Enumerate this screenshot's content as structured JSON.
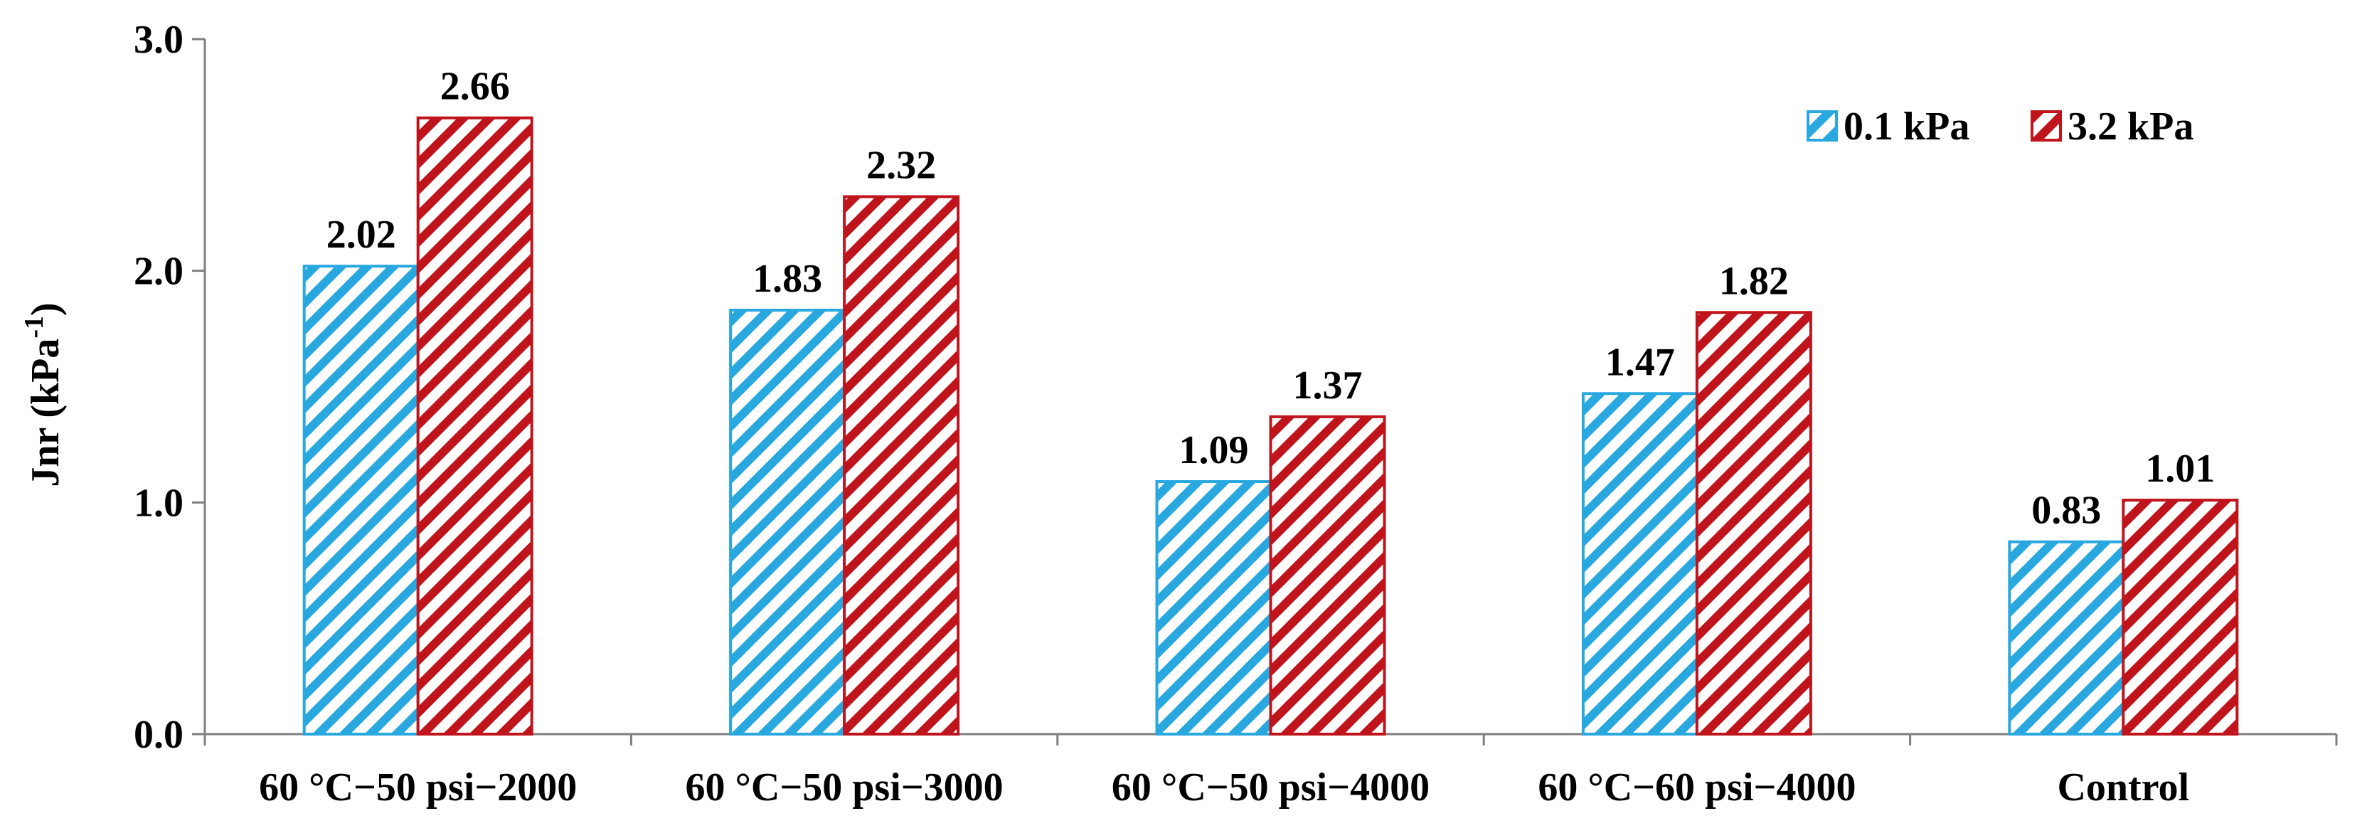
{
  "chart_data": {
    "type": "bar",
    "categories": [
      "60 °C−50 psi−2000",
      "60 °C−50 psi−3000",
      "60 °C−50 psi−4000",
      "60 °C−60 psi−4000",
      "Control"
    ],
    "series": [
      {
        "name": "0.1 kPa",
        "values": [
          2.02,
          1.83,
          1.09,
          1.47,
          0.83
        ],
        "color": "#29a8e0"
      },
      {
        "name": "3.2 kPa",
        "values": [
          2.66,
          2.32,
          1.37,
          1.82,
          1.01
        ],
        "color": "#c0141c"
      }
    ],
    "data_labels": [
      [
        "2.02",
        "1.83",
        "1.09",
        "1.47",
        "0.83"
      ],
      [
        "2.66",
        "2.32",
        "1.37",
        "1.82",
        "1.01"
      ]
    ],
    "title": "",
    "xlabel": "",
    "ylabel": "Jnr (kPa",
    "ylabel_superscript": "-1",
    "ylabel_suffix": ")",
    "ylim": [
      0,
      3.0
    ],
    "yticks": [
      0.0,
      1.0,
      2.0,
      3.0
    ],
    "ytick_labels": [
      "0.0",
      "1.0",
      "2.0",
      "3.0"
    ],
    "grid": false,
    "legend_position": "top-right",
    "bar_pattern": "diagonal-hatch"
  }
}
